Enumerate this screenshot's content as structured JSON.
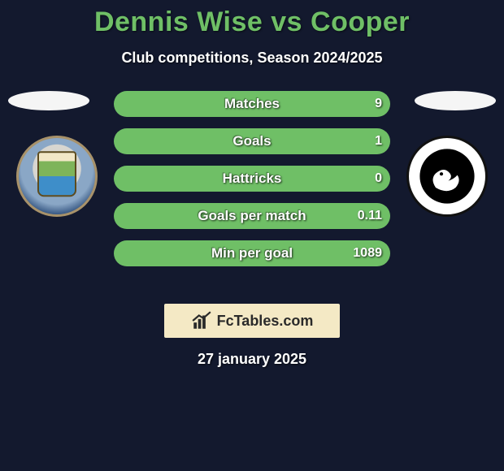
{
  "header": {
    "title": "Dennis Wise vs Cooper",
    "subtitle": "Club competitions, Season 2024/2025",
    "title_color": "#6fbf66",
    "title_fontsize": 34
  },
  "background_color": "#13192e",
  "left_player": {
    "badge_name": "coventry-city-badge"
  },
  "right_player": {
    "badge_name": "swansea-city-badge"
  },
  "bars": {
    "height": 32,
    "radius": 16,
    "gap": 14,
    "left_color": "#3f7a2f",
    "right_color": "#6fbf66",
    "label_fontsize": 17,
    "value_fontsize": 16,
    "rows": [
      {
        "label": "Matches",
        "left_val": "",
        "right_val": "9",
        "left_pct": 0,
        "right_pct": 100
      },
      {
        "label": "Goals",
        "left_val": "",
        "right_val": "1",
        "left_pct": 0,
        "right_pct": 100
      },
      {
        "label": "Hattricks",
        "left_val": "",
        "right_val": "0",
        "left_pct": 0,
        "right_pct": 100
      },
      {
        "label": "Goals per match",
        "left_val": "",
        "right_val": "0.11",
        "left_pct": 0,
        "right_pct": 100
      },
      {
        "label": "Min per goal",
        "left_val": "",
        "right_val": "1089",
        "left_pct": 0,
        "right_pct": 100
      }
    ]
  },
  "branding": {
    "text": "FcTables.com",
    "box_bg": "#f4e9c5",
    "text_color": "#2a2a2a"
  },
  "footer_date": "27 january 2025"
}
